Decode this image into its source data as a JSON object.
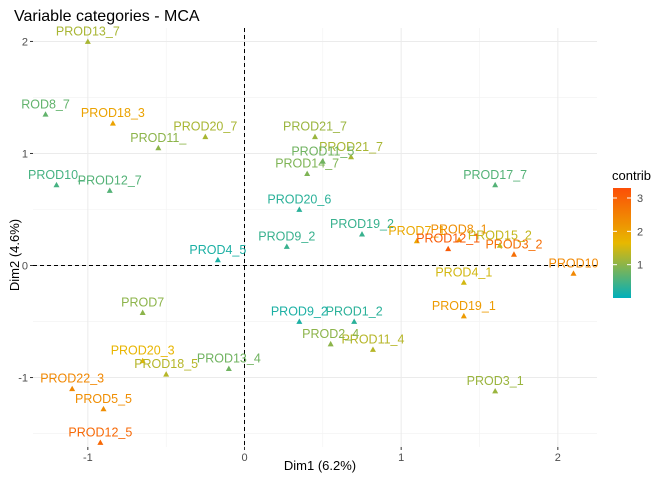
{
  "chart_data": {
    "type": "scatter",
    "title": "Variable categories - MCA",
    "xlabel": "Dim1 (6.2%)",
    "ylabel": "Dim2 (4.6%)",
    "xlim": [
      -1.35,
      2.25
    ],
    "ylim": [
      -1.62,
      2.12
    ],
    "x_ticks": [
      {
        "value": -1,
        "label": "-1"
      },
      {
        "value": 0,
        "label": "0"
      },
      {
        "value": 1,
        "label": "1"
      },
      {
        "value": 2,
        "label": "2"
      }
    ],
    "y_ticks": [
      {
        "value": -1,
        "label": "-1"
      },
      {
        "value": 0,
        "label": "0"
      },
      {
        "value": 1,
        "label": "1"
      },
      {
        "value": 2,
        "label": "2"
      }
    ],
    "reference_lines": {
      "x": 0,
      "y": 0,
      "style": "dashed"
    },
    "grid": true,
    "legend": {
      "title": "contrib",
      "placement": "right",
      "min": 0,
      "max": 3.3,
      "ticks": [
        {
          "value": 1,
          "label": "1"
        },
        {
          "value": 2,
          "label": "2"
        },
        {
          "value": 3,
          "label": "3"
        }
      ],
      "colors": [
        "#00AFBB",
        "#E7B800",
        "#FC4E07"
      ]
    },
    "points": [
      {
        "label": "PROD13_7",
        "x": -1.0,
        "y": 2.0,
        "contrib": 1.2
      },
      {
        "label": "ROD8_7",
        "x": -1.27,
        "y": 1.35,
        "contrib": 0.7
      },
      {
        "label": "PROD18_3",
        "x": -0.84,
        "y": 1.27,
        "contrib": 2.0
      },
      {
        "label": "PROD10_",
        "x": -1.2,
        "y": 0.72,
        "contrib": 0.5
      },
      {
        "label": "PROD12_7",
        "x": -0.86,
        "y": 0.67,
        "contrib": 0.6
      },
      {
        "label": "PROD20_7",
        "x": -0.25,
        "y": 1.15,
        "contrib": 1.2
      },
      {
        "label": "PROD11_",
        "x": -0.55,
        "y": 1.05,
        "contrib": 1.0
      },
      {
        "label": "PROD21_7",
        "x": 0.45,
        "y": 1.15,
        "contrib": 1.1
      },
      {
        "label": "PROD21_7",
        "x": 0.68,
        "y": 0.97,
        "contrib": 1.2
      },
      {
        "label": "PROD14_7",
        "x": 0.4,
        "y": 0.82,
        "contrib": 0.9
      },
      {
        "label": "PROD11_5",
        "x": 0.5,
        "y": 0.93,
        "contrib": 0.8
      },
      {
        "label": "PROD17_7",
        "x": 1.6,
        "y": 0.72,
        "contrib": 0.6
      },
      {
        "label": "PROD20_6",
        "x": 0.35,
        "y": 0.5,
        "contrib": 0.3
      },
      {
        "label": "PROD19_2",
        "x": 0.75,
        "y": 0.28,
        "contrib": 0.4
      },
      {
        "label": "PROD7_1",
        "x": 1.1,
        "y": 0.22,
        "contrib": 1.9
      },
      {
        "label": "PROD8_1",
        "x": 1.37,
        "y": 0.23,
        "contrib": 2.3
      },
      {
        "label": "PROD12_1",
        "x": 1.3,
        "y": 0.15,
        "contrib": 3.1
      },
      {
        "label": "PROD3_2",
        "x": 1.72,
        "y": 0.1,
        "contrib": 2.8
      },
      {
        "label": "PROD10",
        "x": 2.1,
        "y": -0.07,
        "contrib": 2.4
      },
      {
        "label": "PROD9_2",
        "x": 0.27,
        "y": 0.17,
        "contrib": 0.4
      },
      {
        "label": "PROD4_5",
        "x": -0.17,
        "y": 0.05,
        "contrib": 0.2
      },
      {
        "label": "PROD4_1",
        "x": 1.4,
        "y": -0.15,
        "contrib": 1.5
      },
      {
        "label": "PROD19_1",
        "x": 1.4,
        "y": -0.45,
        "contrib": 2.1
      },
      {
        "label": "PROD15_2",
        "x": 1.63,
        "y": 0.18,
        "contrib": 1.4
      },
      {
        "label": "PROD1_2",
        "x": 0.7,
        "y": -0.5,
        "contrib": 0.3
      },
      {
        "label": "PROD9_2",
        "x": 0.35,
        "y": -0.5,
        "contrib": 0.2
      },
      {
        "label": "PROD11_4",
        "x": 0.82,
        "y": -0.75,
        "contrib": 1.3
      },
      {
        "label": "PROD2_4",
        "x": 0.55,
        "y": -0.7,
        "contrib": 1.0
      },
      {
        "label": "PROD3_1",
        "x": 1.6,
        "y": -1.12,
        "contrib": 1.1
      },
      {
        "label": "PROD7",
        "x": -0.65,
        "y": -0.42,
        "contrib": 1.0
      },
      {
        "label": "PROD20_3",
        "x": -0.65,
        "y": -0.85,
        "contrib": 1.7
      },
      {
        "label": "PROD18_5",
        "x": -0.5,
        "y": -0.97,
        "contrib": 1.3
      },
      {
        "label": "PROD13_4",
        "x": -0.1,
        "y": -0.92,
        "contrib": 0.8
      },
      {
        "label": "PROD22_3",
        "x": -1.1,
        "y": -1.1,
        "contrib": 2.4
      },
      {
        "label": "PROD5_5",
        "x": -0.9,
        "y": -1.28,
        "contrib": 2.3
      },
      {
        "label": "PROD12_5",
        "x": -0.92,
        "y": -1.58,
        "contrib": 2.9
      }
    ]
  }
}
